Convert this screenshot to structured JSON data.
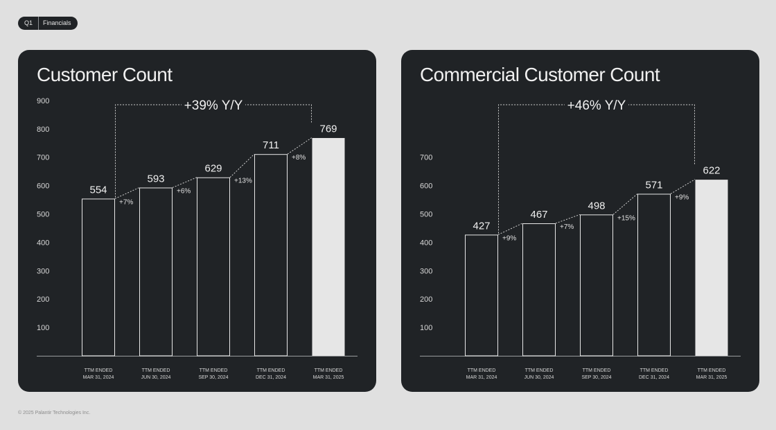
{
  "header": {
    "quarter": "Q1",
    "section": "Financials"
  },
  "footer": "© 2025 Palantir Technologies Inc.",
  "colors": {
    "page_bg": "#e0e0e0",
    "panel_bg": "#202326",
    "bar_outline": "#e8e8e8",
    "bar_highlight": "#e6e6e6",
    "text": "#f0f0f0"
  },
  "chart_data": [
    {
      "type": "bar",
      "title": "Customer Count",
      "categories": [
        [
          "TTM ENDED",
          "MAR 31, 2024"
        ],
        [
          "TTM ENDED",
          "JUN 30, 2024"
        ],
        [
          "TTM ENDED",
          "SEP 30, 2024"
        ],
        [
          "TTM ENDED",
          "DEC 31, 2024"
        ],
        [
          "TTM ENDED",
          "MAR 31, 2025"
        ]
      ],
      "values": [
        554,
        593,
        629,
        711,
        769
      ],
      "growth_labels": [
        "+7%",
        "+6%",
        "+13%",
        "+8%"
      ],
      "yoy_label": "+39% Y/Y",
      "yticks": [
        100,
        200,
        300,
        400,
        500,
        600,
        700,
        800,
        900
      ],
      "ylim": [
        0,
        900
      ],
      "highlight_last": true,
      "grid": false
    },
    {
      "type": "bar",
      "title": "Commercial Customer Count",
      "categories": [
        [
          "TTM ENDED",
          "MAR 31, 2024"
        ],
        [
          "TTM ENDED",
          "JUN 30, 2024"
        ],
        [
          "TTM ENDED",
          "SEP 30, 2024"
        ],
        [
          "TTM ENDED",
          "DEC 31, 2024"
        ],
        [
          "TTM ENDED",
          "MAR 31, 2025"
        ]
      ],
      "values": [
        427,
        467,
        498,
        571,
        622
      ],
      "growth_labels": [
        "+9%",
        "+7%",
        "+15%",
        "+9%"
      ],
      "yoy_label": "+46% Y/Y",
      "yticks": [
        100,
        200,
        300,
        400,
        500,
        600,
        700
      ],
      "ylim": [
        0,
        700
      ],
      "highlight_last": true,
      "grid": false
    }
  ]
}
